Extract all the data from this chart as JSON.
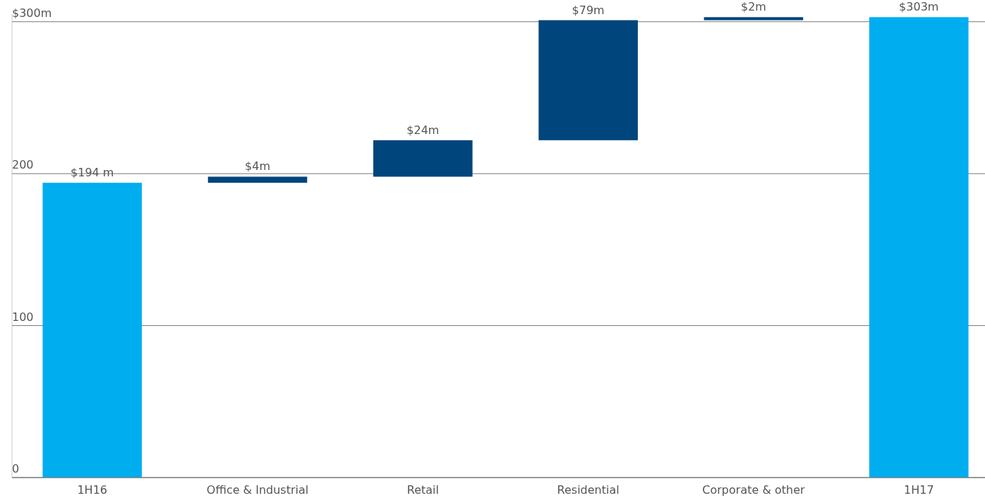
{
  "chart_data": {
    "type": "bar",
    "categories": [
      "1H16",
      "Office & Industrial",
      "Retail",
      "Residential",
      "Corporate & other",
      "1H17"
    ],
    "values": [
      194,
      4,
      24,
      79,
      2,
      303
    ],
    "base": [
      0,
      194,
      198,
      222,
      301,
      0
    ],
    "colors": [
      "#00aeef",
      "#00457c",
      "#00457c",
      "#00457c",
      "#00457c",
      "#00aeef"
    ],
    "value_labels": [
      "$194 m",
      "$4m",
      "$24m",
      "$79m",
      "$2m",
      "$303m"
    ],
    "ylim": [
      0,
      305
    ],
    "yticks": [
      0,
      100,
      200,
      {
        "value": 300,
        "label": "$300m"
      }
    ],
    "grid": "y"
  }
}
